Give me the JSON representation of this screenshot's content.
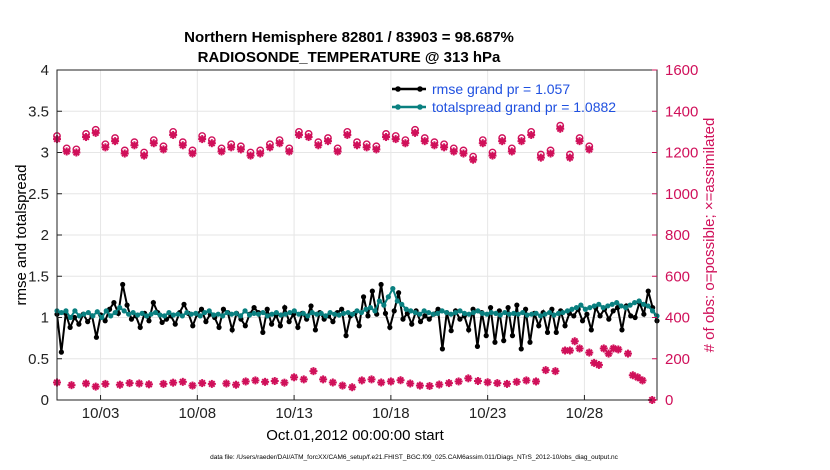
{
  "chart_data": {
    "type": "line",
    "title_line1": "Northern Hemisphere 82801 / 83903 = 98.687%",
    "title_line2": "RADIOSONDE_TEMPERATURE @ 313 hPa",
    "xlabel": "Oct.01,2012 00:00:00 start",
    "ylabel_left": "rmse and totalspread",
    "ylabel_right": "# of obs: o=possible; ×=assimilated",
    "xlim": [
      0,
      124
    ],
    "ylim_left": [
      0,
      4
    ],
    "ylim_right": [
      0,
      1600
    ],
    "x_ticks": [
      {
        "x": 9,
        "label": "10/03"
      },
      {
        "x": 29,
        "label": "10/08"
      },
      {
        "x": 49,
        "label": "10/13"
      },
      {
        "x": 69,
        "label": "10/18"
      },
      {
        "x": 89,
        "label": "10/23"
      },
      {
        "x": 109,
        "label": "10/28"
      }
    ],
    "y_ticks_left": [
      "0",
      "0.5",
      "1",
      "1.5",
      "2",
      "2.5",
      "3",
      "3.5",
      "4"
    ],
    "y_ticks_right": [
      "0",
      "200",
      "400",
      "600",
      "800",
      "1000",
      "1200",
      "1400",
      "1600"
    ],
    "footnote": "data file: /Users/raeder/DAI/ATM_forcXX/CAM6_setup/f.e21.FHIST_BGC.f09_025.CAM6assim.011/Diags_NTrS_2012-10/obs_diag_output.nc",
    "colors": {
      "rmse": "#000000",
      "spread": "#0a8080",
      "obs": "#d0105a",
      "legend_text": "#1f50e0"
    },
    "series": [
      {
        "name": "rmse grand pr = 1.057",
        "axis": "left",
        "values": [
          1.04,
          0.58,
          1.05,
          0.88,
          1.0,
          0.92,
          1.04,
          0.95,
          1.02,
          0.76,
          1.03,
          0.96,
          1.1,
          1.18,
          1.05,
          1.4,
          1.15,
          0.98,
          1.02,
          0.88,
          1.05,
          0.96,
          1.18,
          1.06,
          0.94,
          0.98,
          1.02,
          0.92,
          1.06,
          1.16,
          1.05,
          0.9,
          1.04,
          1.1,
          0.95,
          1.04,
          1.0,
          0.88,
          1.1,
          1.06,
          0.85,
          1.05,
          0.98,
          0.9,
          1.04,
          1.12,
          1.06,
          0.82,
          1.1,
          0.92,
          1.03,
          0.9,
          1.12,
          0.95,
          1.04,
          0.88,
          1.05,
          0.98,
          1.14,
          0.85,
          1.06,
          0.98,
          1.02,
          0.95,
          1.06,
          1.1,
          0.78,
          1.02,
          1.05,
          0.9,
          1.25,
          1.02,
          1.32,
          1.04,
          1.4,
          1.05,
          0.88,
          1.08,
          1.3,
          0.98,
          1.05,
          0.92,
          1.08,
          0.95,
          1.02,
          0.98,
          1.04,
          1.1,
          0.62,
          1.06,
          0.84,
          1.08,
          0.98,
          1.02,
          0.85,
          1.1,
          0.65,
          1.06,
          0.78,
          1.12,
          0.7,
          1.08,
          0.72,
          1.12,
          0.78,
          1.15,
          0.62,
          1.1,
          0.7,
          1.05,
          0.9,
          1.06,
          0.82,
          1.1,
          0.82,
          1.08,
          0.9,
          1.05,
          1.02,
          1.1,
          0.96,
          1.04,
          0.85,
          1.12,
          1.02,
          1.1,
          0.98,
          1.08,
          1.12,
          0.85,
          1.14,
          1.02,
          1.0,
          1.18,
          1.04,
          1.32,
          1.12,
          0.96
        ]
      },
      {
        "name": "totalspread grand pr = 1.0882",
        "axis": "left",
        "values": [
          1.08,
          1.06,
          1.08,
          1.0,
          1.08,
          1.02,
          1.04,
          1.06,
          1.02,
          1.07,
          1.0,
          1.08,
          1.02,
          1.06,
          1.12,
          1.08,
          1.04,
          1.06,
          1.03,
          1.05,
          1.02,
          1.04,
          1.06,
          1.03,
          1.02,
          1.06,
          1.03,
          1.04,
          1.02,
          1.06,
          1.04,
          1.05,
          1.02,
          1.06,
          1.08,
          1.03,
          1.04,
          1.02,
          1.06,
          1.04,
          1.05,
          1.02,
          1.08,
          1.03,
          1.05,
          1.04,
          1.06,
          1.02,
          1.04,
          1.06,
          1.03,
          1.04,
          1.06,
          1.08,
          1.04,
          1.05,
          1.02,
          1.06,
          1.04,
          1.05,
          1.02,
          1.06,
          1.04,
          1.03,
          1.05,
          1.06,
          1.04,
          1.08,
          1.06,
          1.1,
          1.12,
          1.08,
          1.2,
          1.15,
          1.25,
          1.35,
          1.2,
          1.16,
          1.1,
          1.08,
          1.06,
          1.04,
          1.08,
          1.06,
          1.04,
          1.05,
          1.08,
          1.06,
          1.04,
          1.06,
          1.08,
          1.05,
          1.04,
          1.06,
          1.08,
          1.05,
          1.04,
          1.06,
          1.05,
          1.03,
          1.06,
          1.04,
          1.05,
          1.04,
          1.06,
          1.03,
          1.04,
          1.05,
          1.02,
          1.04,
          1.06,
          1.03,
          1.05,
          1.06,
          1.08,
          1.1,
          1.12,
          1.15,
          1.1,
          1.12,
          1.14,
          1.16,
          1.12,
          1.14,
          1.16,
          1.18,
          1.14,
          1.12,
          1.15,
          1.18,
          1.2,
          1.16,
          1.14,
          1.08,
          1.02
        ]
      },
      {
        "name": "possible",
        "axis": "right",
        "values": [
          1280,
          1220,
          1215,
          1290,
          1310,
          1240,
          1270,
          1210,
          1250,
          1200,
          1260,
          1230,
          1300,
          1250,
          1210,
          1280,
          1260,
          1220,
          1240,
          1230,
          1200,
          1210,
          1240,
          1260,
          1220,
          1300,
          1290,
          1250,
          1270,
          1220,
          1300,
          1250,
          1240,
          1230,
          1290,
          1280,
          1260,
          1310,
          1270,
          1250,
          1240,
          1220,
          1210,
          1180,
          1260,
          1200,
          1270,
          1220,
          1270,
          1300,
          1190,
          1210,
          1330,
          1190,
          1270,
          1230
        ],
        "x": [
          0,
          2,
          4,
          6,
          8,
          10,
          12,
          14,
          16,
          18,
          20,
          22,
          24,
          26,
          28,
          30,
          32,
          34,
          36,
          38,
          40,
          42,
          44,
          46,
          48,
          50,
          52,
          54,
          56,
          58,
          60,
          62,
          64,
          66,
          68,
          70,
          72,
          74,
          76,
          78,
          80,
          82,
          84,
          86,
          88,
          90,
          92,
          94,
          96,
          98,
          100,
          102,
          104,
          106,
          108,
          110
        ]
      },
      {
        "name": "assimilated",
        "axis": "right",
        "values": [
          85,
          72,
          80,
          65,
          78,
          74,
          82,
          80,
          76,
          78,
          84,
          88,
          70,
          82,
          78,
          80,
          74,
          90,
          95,
          88,
          92,
          84,
          110,
          100,
          140,
          100,
          85,
          70,
          62,
          95,
          100,
          85,
          90,
          96,
          80,
          70,
          68,
          75,
          82,
          90,
          105,
          92,
          86,
          82,
          78,
          88,
          95,
          90,
          145,
          140,
          240,
          240,
          285,
          250,
          230,
          180,
          170,
          250,
          225,
          250,
          245,
          225,
          120,
          110,
          95,
          0
        ]
      },
      {
        "name": "assimilated_x",
        "axis": "right",
        "values": [
          0,
          3,
          6,
          8,
          10,
          13,
          15,
          17,
          19,
          22,
          24,
          26,
          28,
          30,
          32,
          35,
          37,
          39,
          41,
          43,
          45,
          47,
          49,
          51,
          53,
          55,
          57,
          59,
          61,
          63,
          65,
          67,
          69,
          71,
          73,
          75,
          77,
          79,
          81,
          83,
          85,
          87,
          89,
          91,
          93,
          95,
          97,
          99,
          101,
          103,
          105,
          106,
          107,
          108,
          110,
          111,
          112,
          113,
          114,
          115,
          116,
          118,
          119,
          120,
          121,
          123
        ]
      }
    ]
  }
}
